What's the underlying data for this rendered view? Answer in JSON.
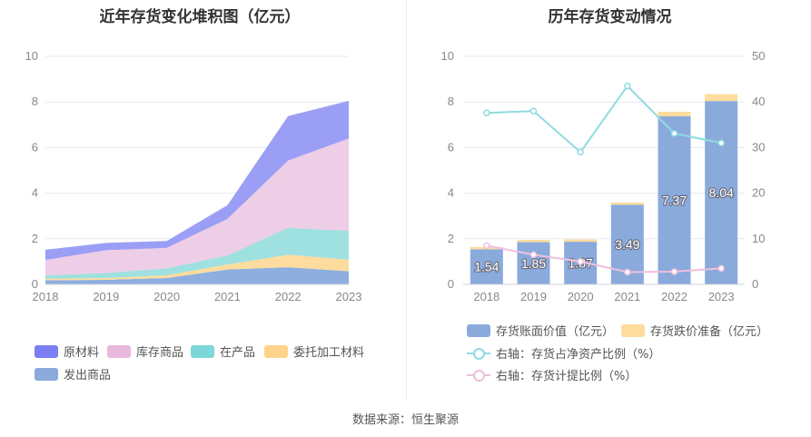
{
  "source": "数据来源：恒生聚源",
  "chart_data": [
    {
      "type": "area",
      "title": "近年存货变化堆积图（亿元）",
      "x": [
        "2018",
        "2019",
        "2020",
        "2021",
        "2022",
        "2023"
      ],
      "ylim": [
        0,
        10
      ],
      "yticks": [
        0,
        2,
        4,
        6,
        8,
        10
      ],
      "stacked": true,
      "grid": true,
      "legend_position": "bottom",
      "series": [
        {
          "name": "发出商品",
          "values": [
            0.18,
            0.2,
            0.28,
            0.65,
            0.75,
            0.58
          ],
          "color": "#8eaee0"
        },
        {
          "name": "委托加工材料",
          "values": [
            0.07,
            0.08,
            0.12,
            0.22,
            0.55,
            0.5
          ],
          "color": "#fddc9d"
        },
        {
          "name": "在产品",
          "values": [
            0.15,
            0.22,
            0.3,
            0.4,
            1.18,
            1.27
          ],
          "color": "#9fe0e0"
        },
        {
          "name": "库存商品",
          "values": [
            0.67,
            1.0,
            0.9,
            1.6,
            2.95,
            4.05
          ],
          "color": "#eecde6"
        },
        {
          "name": "原材料",
          "values": [
            0.45,
            0.32,
            0.3,
            0.6,
            1.95,
            1.65
          ],
          "color": "#9b9ef5"
        }
      ],
      "legend_order": [
        "原材料",
        "库存商品",
        "在产品",
        "委托加工材料",
        "发出商品"
      ],
      "legend_colors": {
        "原材料": "#7b7ff2",
        "库存商品": "#e8b9dc",
        "在产品": "#7dd7d8",
        "委托加工材料": "#ffd38b",
        "发出商品": "#8aaadc"
      }
    },
    {
      "type": "bar",
      "title": "历年存货变动情况",
      "categories": [
        "2018",
        "2019",
        "2020",
        "2021",
        "2022",
        "2023"
      ],
      "ylim": [
        0,
        10
      ],
      "yticks": [
        0,
        2,
        4,
        6,
        8,
        10
      ],
      "y2lim": [
        0,
        50
      ],
      "y2ticks": [
        0,
        10,
        20,
        30,
        40,
        50
      ],
      "grid": true,
      "legend_position": "bottom",
      "series": [
        {
          "name": "存货账面价值（亿元）",
          "values": [
            1.54,
            1.85,
            1.87,
            3.49,
            7.37,
            8.04
          ],
          "labels": [
            "1.54",
            "1.85",
            "1.87",
            "3.49",
            "7.37",
            "8.04"
          ],
          "color": "#8aaadc",
          "axis": "left",
          "kind": "bar"
        },
        {
          "name": "存货跌价准备（亿元）",
          "values": [
            0.1,
            0.1,
            0.1,
            0.1,
            0.2,
            0.3
          ],
          "color": "#fddc9d",
          "axis": "left",
          "kind": "bar"
        },
        {
          "name": "右轴：存货占净资产比例（%）",
          "values": [
            37.6,
            38.0,
            29.0,
            43.5,
            33.1,
            31.0
          ],
          "color": "#8fdbdf",
          "axis": "right",
          "kind": "line"
        },
        {
          "name": "右轴：存货计提比例（%）",
          "values": [
            8.5,
            6.5,
            5.0,
            2.7,
            2.8,
            3.5
          ],
          "color": "#f0bfdd",
          "axis": "right",
          "kind": "line"
        }
      ]
    }
  ]
}
